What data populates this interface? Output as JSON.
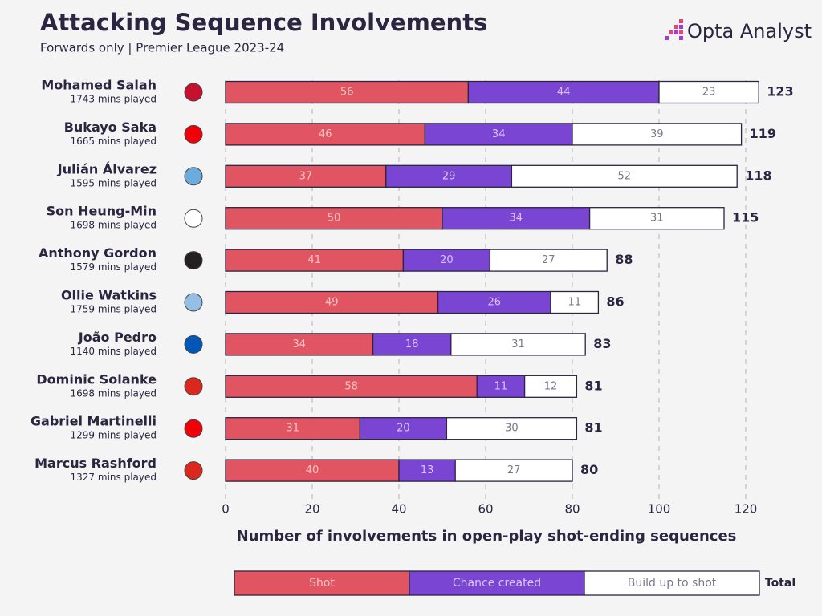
{
  "chart_data": {
    "type": "stacked-bar",
    "title": "Attacking Sequence Involvements",
    "subtitle": "Forwards only | Premier League 2023-24",
    "brand": "Opta Analyst",
    "x_label": "Number of involvements in open-play shot-ending sequences",
    "categories": [
      "Mohamed Salah",
      "Bukayo Saka",
      "Julián Álvarez",
      "Son Heung-Min",
      "Anthony Gordon",
      "Ollie Watkins",
      "João Pedro",
      "Dominic Solanke",
      "Gabriel Martinelli",
      "Marcus Rashford"
    ],
    "category_notes": [
      "1743 mins played",
      "1665 mins played",
      "1595 mins played",
      "1698 mins played",
      "1579 mins played",
      "1759 mins played",
      "1140 mins played",
      "1698 mins played",
      "1299 mins played",
      "1327 mins played"
    ],
    "series": [
      {
        "name": "Shot",
        "color": "#e05561",
        "values": [
          56,
          46,
          37,
          50,
          41,
          49,
          34,
          58,
          31,
          40
        ]
      },
      {
        "name": "Chance created",
        "color": "#7a45d2",
        "values": [
          44,
          34,
          29,
          34,
          20,
          26,
          18,
          11,
          20,
          13
        ]
      },
      {
        "name": "Build up to shot",
        "color": "#ffffff",
        "values": [
          23,
          39,
          52,
          31,
          27,
          11,
          31,
          12,
          30,
          27
        ]
      }
    ],
    "totals": [
      123,
      119,
      118,
      115,
      88,
      86,
      83,
      81,
      81,
      80
    ],
    "total_label": "Total",
    "xlim": [
      0,
      120
    ],
    "xticks": [
      0,
      20,
      40,
      60,
      80,
      100,
      120
    ],
    "grid": true
  }
}
